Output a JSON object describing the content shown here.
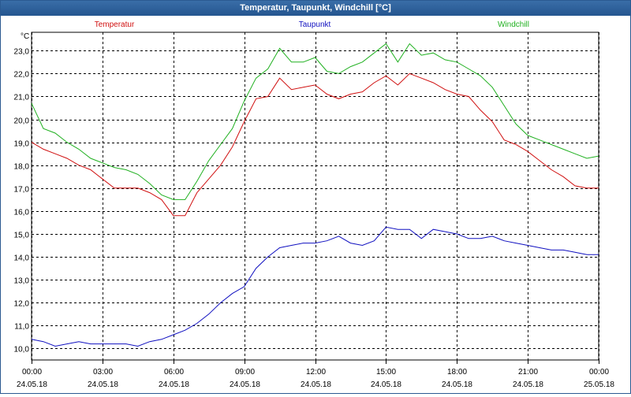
{
  "window": {
    "title": "Temperatur, Taupunkt, Windchill [°C]"
  },
  "chart_data": {
    "type": "line",
    "title": "Temperatur, Taupunkt, Windchill [°C]",
    "ylabel": "°C",
    "xlabel": "",
    "ylim": [
      9.5,
      23.8
    ],
    "yticks": [
      "10,0",
      "11,0",
      "12,0",
      "13,0",
      "14,0",
      "15,0",
      "16,0",
      "17,0",
      "18,0",
      "19,0",
      "20,0",
      "21,0",
      "22,0",
      "23,0"
    ],
    "xticks": [
      {
        "time": "00:00",
        "date": "24.05.18"
      },
      {
        "time": "03:00",
        "date": "24.05.18"
      },
      {
        "time": "06:00",
        "date": "24.05.18"
      },
      {
        "time": "09:00",
        "date": "24.05.18"
      },
      {
        "time": "12:00",
        "date": "24.05.18"
      },
      {
        "time": "15:00",
        "date": "24.05.18"
      },
      {
        "time": "18:00",
        "date": "24.05.18"
      },
      {
        "time": "21:00",
        "date": "24.05.18"
      },
      {
        "time": "00:00",
        "date": "25.05.18"
      }
    ],
    "grid": true,
    "x_hours": [
      0,
      0.5,
      1,
      1.5,
      2,
      2.5,
      3,
      3.5,
      4,
      4.5,
      5,
      5.5,
      6,
      6.5,
      7,
      7.5,
      8,
      8.5,
      9,
      9.5,
      10,
      10.5,
      11,
      11.5,
      12,
      12.5,
      13,
      13.5,
      14,
      14.5,
      15,
      15.5,
      16,
      16.5,
      17,
      17.5,
      18,
      18.5,
      19,
      19.5,
      20,
      20.5,
      21,
      21.5,
      22,
      22.5,
      23,
      23.5,
      24
    ],
    "series": [
      {
        "name": "Temperatur",
        "color": "#d01010",
        "values": [
          19.0,
          18.7,
          18.5,
          18.3,
          18.0,
          17.8,
          17.4,
          17.0,
          17.0,
          17.0,
          16.8,
          16.5,
          15.8,
          15.8,
          16.8,
          17.4,
          18.0,
          18.8,
          19.9,
          20.9,
          21.0,
          21.8,
          21.3,
          21.4,
          21.5,
          21.1,
          20.9,
          21.1,
          21.2,
          21.6,
          21.9,
          21.5,
          22.0,
          21.8,
          21.6,
          21.3,
          21.1,
          21.0,
          20.4,
          19.9,
          19.1,
          18.9,
          18.6,
          18.2,
          17.8,
          17.5,
          17.1,
          17.0,
          17.0
        ]
      },
      {
        "name": "Taupunkt",
        "color": "#1010c0",
        "values": [
          10.4,
          10.3,
          10.1,
          10.2,
          10.3,
          10.2,
          10.2,
          10.2,
          10.2,
          10.1,
          10.3,
          10.4,
          10.6,
          10.8,
          11.1,
          11.5,
          12.0,
          12.4,
          12.7,
          13.5,
          14.0,
          14.4,
          14.5,
          14.6,
          14.6,
          14.7,
          14.9,
          14.6,
          14.5,
          14.7,
          15.3,
          15.2,
          15.2,
          14.8,
          15.2,
          15.1,
          15.0,
          14.8,
          14.8,
          14.9,
          14.7,
          14.6,
          14.5,
          14.4,
          14.3,
          14.3,
          14.2,
          14.1,
          14.1
        ]
      },
      {
        "name": "Windchill",
        "color": "#20b020",
        "values": [
          20.7,
          19.6,
          19.4,
          19.0,
          18.7,
          18.3,
          18.1,
          17.9,
          17.8,
          17.6,
          17.2,
          16.7,
          16.5,
          16.5,
          17.3,
          18.2,
          18.9,
          19.6,
          20.8,
          21.8,
          22.2,
          23.1,
          22.5,
          22.5,
          22.7,
          22.1,
          22.0,
          22.3,
          22.5,
          22.9,
          23.3,
          22.5,
          23.3,
          22.8,
          22.9,
          22.6,
          22.5,
          22.2,
          21.9,
          21.4,
          20.6,
          19.8,
          19.3,
          19.1,
          18.9,
          18.7,
          18.5,
          18.3,
          18.4
        ]
      }
    ]
  }
}
